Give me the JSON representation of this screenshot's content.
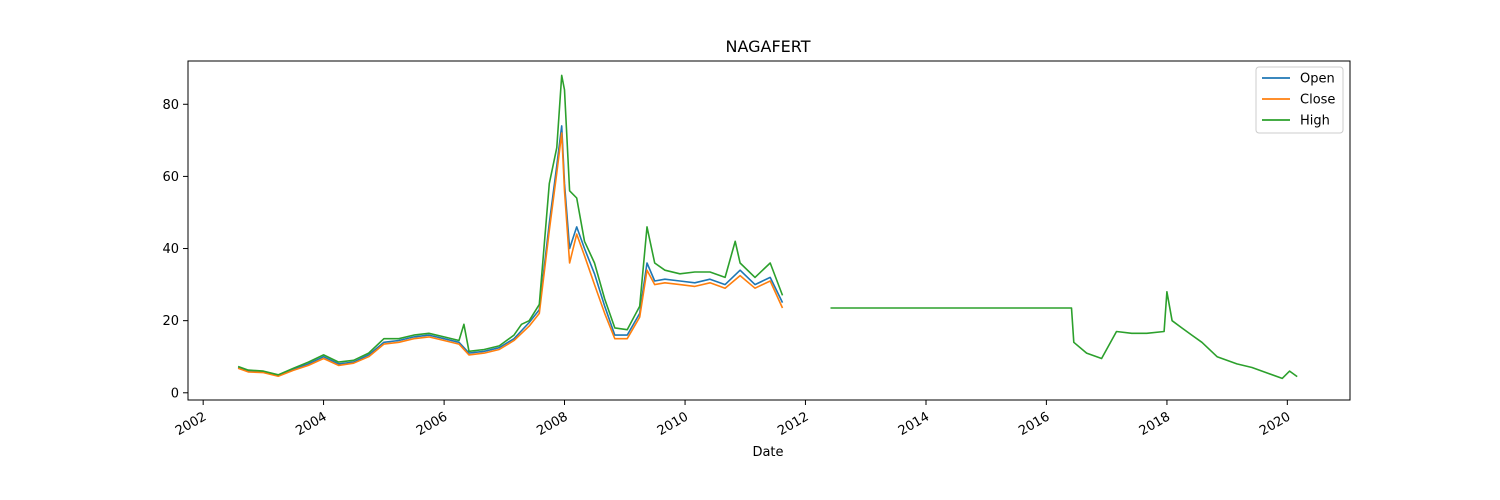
{
  "chart_data": {
    "type": "line",
    "title": "NAGAFERT",
    "xlabel": "Date",
    "ylabel": "",
    "x_axis_type": "date",
    "xlim": [
      "2001-10-01",
      "2021-01-15"
    ],
    "ylim": [
      -2,
      92
    ],
    "xticks": [
      "2002",
      "2004",
      "2006",
      "2008",
      "2010",
      "2012",
      "2014",
      "2016",
      "2018",
      "2020"
    ],
    "yticks": [
      0,
      20,
      40,
      60,
      80
    ],
    "grid": false,
    "legend_position": "top-right",
    "colors": {
      "Open": "#1f77b4",
      "Close": "#ff7f0e",
      "High": "#2ca02c"
    },
    "series": [
      {
        "name": "Open",
        "points": [
          [
            "2002-08-01",
            7.0
          ],
          [
            "2002-10-01",
            6.0
          ],
          [
            "2003-01-01",
            5.8
          ],
          [
            "2003-04-01",
            4.8
          ],
          [
            "2003-07-01",
            6.5
          ],
          [
            "2003-10-01",
            8.0
          ],
          [
            "2004-01-01",
            10.0
          ],
          [
            "2004-04-01",
            8.0
          ],
          [
            "2004-07-01",
            8.5
          ],
          [
            "2004-10-01",
            10.5
          ],
          [
            "2005-01-01",
            14.0
          ],
          [
            "2005-04-01",
            14.5
          ],
          [
            "2005-07-01",
            15.5
          ],
          [
            "2005-10-01",
            16.0
          ],
          [
            "2006-01-01",
            15.0
          ],
          [
            "2006-04-01",
            14.0
          ],
          [
            "2006-06-01",
            11.0
          ],
          [
            "2006-09-01",
            11.5
          ],
          [
            "2006-12-01",
            12.5
          ],
          [
            "2007-03-01",
            15.0
          ],
          [
            "2007-06-01",
            19.5
          ],
          [
            "2007-08-01",
            23.0
          ],
          [
            "2007-10-01",
            47.0
          ],
          [
            "2007-11-15",
            63.0
          ],
          [
            "2007-12-15",
            74.0
          ],
          [
            "2008-01-01",
            58.0
          ],
          [
            "2008-02-01",
            40.0
          ],
          [
            "2008-03-15",
            46.0
          ],
          [
            "2008-05-01",
            40.0
          ],
          [
            "2008-07-01",
            33.0
          ],
          [
            "2008-09-01",
            24.0
          ],
          [
            "2008-11-01",
            16.0
          ],
          [
            "2009-01-15",
            16.0
          ],
          [
            "2009-04-01",
            22.0
          ],
          [
            "2009-05-15",
            36.0
          ],
          [
            "2009-07-01",
            31.0
          ],
          [
            "2009-09-01",
            31.5
          ],
          [
            "2009-12-01",
            31.0
          ],
          [
            "2010-03-01",
            30.5
          ],
          [
            "2010-06-01",
            31.5
          ],
          [
            "2010-09-01",
            30.0
          ],
          [
            "2010-12-01",
            34.0
          ],
          [
            "2011-03-01",
            30.0
          ],
          [
            "2011-06-01",
            32.0
          ],
          [
            "2011-08-15",
            25.0
          ]
        ]
      },
      {
        "name": "Close",
        "points": [
          [
            "2002-08-01",
            6.8
          ],
          [
            "2002-10-01",
            5.8
          ],
          [
            "2003-01-01",
            5.6
          ],
          [
            "2003-04-01",
            4.6
          ],
          [
            "2003-07-01",
            6.2
          ],
          [
            "2003-10-01",
            7.6
          ],
          [
            "2004-01-01",
            9.5
          ],
          [
            "2004-04-01",
            7.6
          ],
          [
            "2004-07-01",
            8.2
          ],
          [
            "2004-10-01",
            10.0
          ],
          [
            "2005-01-01",
            13.5
          ],
          [
            "2005-04-01",
            14.0
          ],
          [
            "2005-07-01",
            15.0
          ],
          [
            "2005-10-01",
            15.5
          ],
          [
            "2006-01-01",
            14.5
          ],
          [
            "2006-04-01",
            13.5
          ],
          [
            "2006-06-01",
            10.5
          ],
          [
            "2006-09-01",
            11.0
          ],
          [
            "2006-12-01",
            12.0
          ],
          [
            "2007-03-01",
            14.5
          ],
          [
            "2007-06-01",
            18.5
          ],
          [
            "2007-08-01",
            22.0
          ],
          [
            "2007-10-01",
            45.0
          ],
          [
            "2007-11-15",
            61.0
          ],
          [
            "2007-12-15",
            72.0
          ],
          [
            "2008-01-01",
            56.0
          ],
          [
            "2008-02-01",
            36.0
          ],
          [
            "2008-03-15",
            44.0
          ],
          [
            "2008-05-01",
            38.0
          ],
          [
            "2008-07-01",
            30.0
          ],
          [
            "2008-09-01",
            22.0
          ],
          [
            "2008-11-01",
            15.0
          ],
          [
            "2009-01-15",
            15.0
          ],
          [
            "2009-04-01",
            21.0
          ],
          [
            "2009-05-15",
            34.0
          ],
          [
            "2009-07-01",
            30.0
          ],
          [
            "2009-09-01",
            30.5
          ],
          [
            "2009-12-01",
            30.0
          ],
          [
            "2010-03-01",
            29.5
          ],
          [
            "2010-06-01",
            30.5
          ],
          [
            "2010-09-01",
            29.0
          ],
          [
            "2010-12-01",
            32.5
          ],
          [
            "2011-03-01",
            29.0
          ],
          [
            "2011-06-01",
            31.0
          ],
          [
            "2011-08-15",
            23.5
          ]
        ]
      },
      {
        "name": "High",
        "points": [
          [
            "2002-08-01",
            7.3
          ],
          [
            "2002-10-01",
            6.3
          ],
          [
            "2003-01-01",
            6.0
          ],
          [
            "2003-04-01",
            5.0
          ],
          [
            "2003-07-01",
            6.8
          ],
          [
            "2003-10-01",
            8.5
          ],
          [
            "2004-01-01",
            10.5
          ],
          [
            "2004-04-01",
            8.5
          ],
          [
            "2004-07-01",
            9.0
          ],
          [
            "2004-10-01",
            11.0
          ],
          [
            "2005-01-01",
            15.0
          ],
          [
            "2005-04-01",
            15.0
          ],
          [
            "2005-07-01",
            16.0
          ],
          [
            "2005-10-01",
            16.5
          ],
          [
            "2006-01-01",
            15.5
          ],
          [
            "2006-04-01",
            14.5
          ],
          [
            "2006-05-01",
            19.0
          ],
          [
            "2006-06-01",
            11.5
          ],
          [
            "2006-09-01",
            12.0
          ],
          [
            "2006-12-01",
            13.0
          ],
          [
            "2007-03-01",
            16.0
          ],
          [
            "2007-04-15",
            19.0
          ],
          [
            "2007-06-01",
            20.0
          ],
          [
            "2007-08-01",
            24.5
          ],
          [
            "2007-10-01",
            58.0
          ],
          [
            "2007-11-15",
            68.0
          ],
          [
            "2007-12-15",
            88.0
          ],
          [
            "2008-01-01",
            84.0
          ],
          [
            "2008-02-01",
            56.0
          ],
          [
            "2008-03-15",
            54.0
          ],
          [
            "2008-05-01",
            42.0
          ],
          [
            "2008-07-01",
            36.0
          ],
          [
            "2008-09-01",
            26.0
          ],
          [
            "2008-11-01",
            18.0
          ],
          [
            "2009-01-15",
            17.5
          ],
          [
            "2009-04-01",
            24.0
          ],
          [
            "2009-05-15",
            46.0
          ],
          [
            "2009-07-01",
            36.0
          ],
          [
            "2009-09-01",
            34.0
          ],
          [
            "2009-12-01",
            33.0
          ],
          [
            "2010-03-01",
            33.5
          ],
          [
            "2010-06-01",
            33.5
          ],
          [
            "2010-09-01",
            32.0
          ],
          [
            "2010-11-01",
            42.0
          ],
          [
            "2010-12-01",
            36.0
          ],
          [
            "2011-03-01",
            32.0
          ],
          [
            "2011-06-01",
            36.0
          ],
          [
            "2011-08-15",
            27.0
          ],
          null,
          [
            "2012-06-01",
            23.5
          ],
          [
            "2016-06-01",
            23.5
          ],
          [
            "2016-06-15",
            14.0
          ],
          [
            "2016-09-01",
            11.0
          ],
          [
            "2016-12-01",
            9.5
          ],
          [
            "2017-03-01",
            17.0
          ],
          [
            "2017-06-01",
            16.5
          ],
          [
            "2017-09-01",
            16.5
          ],
          [
            "2017-12-15",
            17.0
          ],
          [
            "2018-01-01",
            28.0
          ],
          [
            "2018-02-01",
            20.0
          ],
          [
            "2018-04-01",
            18.0
          ],
          [
            "2018-06-01",
            16.0
          ],
          [
            "2018-08-01",
            14.0
          ],
          [
            "2018-11-01",
            10.0
          ],
          [
            "2019-03-01",
            8.0
          ],
          [
            "2019-06-01",
            7.0
          ],
          [
            "2019-09-01",
            5.5
          ],
          [
            "2019-12-01",
            4.0
          ],
          [
            "2020-01-15",
            6.0
          ],
          [
            "2020-03-01",
            4.5
          ]
        ]
      }
    ]
  }
}
